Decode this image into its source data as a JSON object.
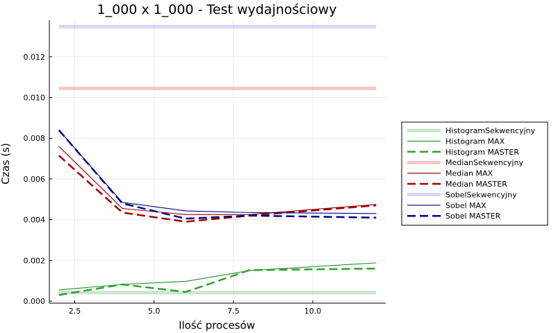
{
  "chart_data": {
    "type": "line",
    "title": "1_000 x 1_000 - Test wydajnościowy",
    "xlabel": "Ilość procesów",
    "ylabel": "Czas (s)",
    "xlim": [
      1.7,
      12.3
    ],
    "ylim": [
      -0.0001,
      0.0138
    ],
    "x_ticks": [
      2.5,
      5.0,
      7.5,
      10.0
    ],
    "x_tick_labels": [
      "2.5",
      "5.0",
      "7.5",
      "10.0"
    ],
    "y_ticks": [
      0.0,
      0.002,
      0.004,
      0.006,
      0.008,
      0.01,
      0.012
    ],
    "y_tick_labels": [
      "0.000",
      "0.002",
      "0.004",
      "0.006",
      "0.008",
      "0.010",
      "0.012"
    ],
    "grid": true,
    "legend_position": "outer-right",
    "series": [
      {
        "name": "HistogramSekwencyjny",
        "color": "#2ca02c",
        "style": "thick-light",
        "x": [
          2,
          12
        ],
        "y": [
          0.00042,
          0.00042
        ]
      },
      {
        "name": "Histogram MAX",
        "color": "#228b22",
        "style": "thin",
        "x": [
          2,
          4,
          6,
          8,
          12
        ],
        "y": [
          0.00055,
          0.00082,
          0.00097,
          0.0015,
          0.00188
        ]
      },
      {
        "name": "Histogram MASTER",
        "color": "#2ca02c",
        "style": "dashed",
        "x": [
          2,
          4,
          6,
          8,
          12
        ],
        "y": [
          0.0003,
          0.00082,
          0.00045,
          0.00152,
          0.0016
        ]
      },
      {
        "name": "MedianSekwencyjny",
        "color": "#d62728",
        "style": "thick-light",
        "x": [
          2,
          12
        ],
        "y": [
          0.01045,
          0.01045
        ]
      },
      {
        "name": "Median MAX",
        "color": "#8b0000",
        "style": "thin",
        "x": [
          2,
          4,
          6,
          8,
          12
        ],
        "y": [
          0.0076,
          0.00455,
          0.00425,
          0.00425,
          0.00475
        ]
      },
      {
        "name": "Median MASTER",
        "color": "#a50000",
        "style": "dashed",
        "x": [
          2,
          4,
          6,
          8,
          12
        ],
        "y": [
          0.00715,
          0.00435,
          0.0039,
          0.0042,
          0.0047
        ]
      },
      {
        "name": "SobelSekwencyjny",
        "color": "#6a5acd",
        "style": "thick-light",
        "x": [
          2,
          12
        ],
        "y": [
          0.01348,
          0.01348
        ]
      },
      {
        "name": "Sobel MAX",
        "color": "#00008b",
        "style": "thin",
        "x": [
          2,
          4,
          6,
          8,
          12
        ],
        "y": [
          0.0084,
          0.00485,
          0.00443,
          0.00435,
          0.0043
        ]
      },
      {
        "name": "Sobel MASTER",
        "color": "#00008b",
        "style": "dashed",
        "x": [
          2,
          4,
          6,
          8,
          12
        ],
        "y": [
          0.0084,
          0.0048,
          0.00405,
          0.0042,
          0.0041
        ]
      }
    ]
  }
}
